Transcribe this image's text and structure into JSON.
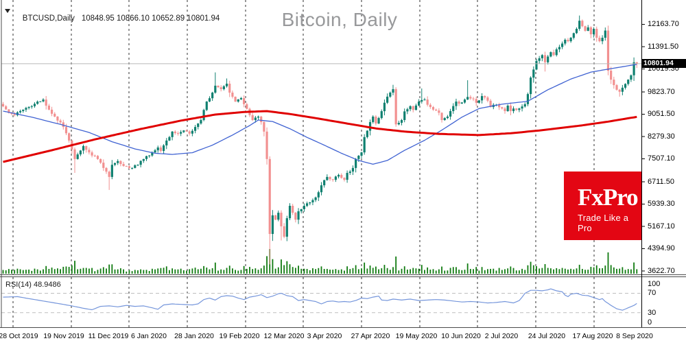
{
  "window": {
    "symbol": "BTCUSD,Daily",
    "ohlc_values": "10848.95 10866.10 10652.89 10801.94",
    "title": "Bitcoin, Daily"
  },
  "logo": {
    "brand": "FxPro",
    "tagline": "Trade Like a Pro",
    "bg_color": "#e30613"
  },
  "chart_data": {
    "type": "candlestick",
    "instrument": "BTCUSD",
    "timeframe": "Daily",
    "title": "Bitcoin, Daily",
    "current_price": "10801.94",
    "last_bar": {
      "open": 10848.95,
      "high": 10866.1,
      "low": 10652.89,
      "close": 10801.94
    },
    "bar_count": 222,
    "y_range": [
      3504,
      13008
    ],
    "y_axis_labels": [
      "12163.70",
      "11391.50",
      "10619.30",
      "9823.70",
      "9051.50",
      "8279.30",
      "7507.10",
      "6711.50",
      "5939.30",
      "5167.10",
      "4394.90",
      "3622.70"
    ],
    "x_axis_labels": [
      "28 Oct 2019",
      "19 Nov 2019",
      "11 Dec 2019",
      "6 Jan 2020",
      "28 Jan 2020",
      "19 Feb 2020",
      "12 Mar 2020",
      "3 Apr 2020",
      "27 Apr 2020",
      "19 May 2020",
      "10 Jun 2020",
      "2 Jul 2020",
      "24 Jul 2020",
      "17 Aug 2020",
      "8 Sep 2020"
    ],
    "colors": {
      "bull": "#0f8070",
      "bear": "#f29090",
      "volume": "#0f7a0f",
      "ma_fast": "#3f62d2",
      "ma_slow": "#e00000",
      "grid": "#2f2f2f",
      "border": "#4a4a4a",
      "axis": "#000000",
      "price_line": "#b8b8b8",
      "price_tag_bg": "#000000",
      "price_tag_fg": "#ffffff",
      "rsi_line": "#7495db",
      "rsi_level": "#bdbdbd",
      "title": "#98999b"
    },
    "close_path": [
      [
        0,
        9325
      ],
      [
        2,
        9100
      ],
      [
        4,
        9020
      ],
      [
        7,
        9210
      ],
      [
        10,
        9330
      ],
      [
        12,
        9490
      ],
      [
        14,
        9560
      ],
      [
        16,
        9210
      ],
      [
        18,
        8970
      ],
      [
        21,
        8610
      ],
      [
        23,
        8140
      ],
      [
        25,
        7500
      ],
      [
        26,
        7660
      ],
      [
        28,
        7950
      ],
      [
        30,
        7730
      ],
      [
        33,
        7500
      ],
      [
        35,
        7190
      ],
      [
        37,
        6880
      ],
      [
        38,
        7300
      ],
      [
        40,
        7430
      ],
      [
        42,
        7260
      ],
      [
        44,
        7190
      ],
      [
        47,
        7300
      ],
      [
        49,
        7500
      ],
      [
        52,
        7730
      ],
      [
        54,
        7900
      ],
      [
        55,
        7780
      ],
      [
        57,
        8140
      ],
      [
        59,
        8450
      ],
      [
        61,
        8380
      ],
      [
        63,
        8490
      ],
      [
        65,
        8380
      ],
      [
        67,
        8610
      ],
      [
        69,
        8850
      ],
      [
        70,
        9200
      ],
      [
        71,
        9490
      ],
      [
        73,
        9800
      ],
      [
        74,
        10040
      ],
      [
        76,
        9920
      ],
      [
        78,
        10110
      ],
      [
        79,
        9800
      ],
      [
        81,
        9490
      ],
      [
        83,
        9610
      ],
      [
        84,
        9400
      ],
      [
        86,
        9020
      ],
      [
        87,
        8850
      ],
      [
        89,
        8970
      ],
      [
        90,
        8780
      ],
      [
        91,
        8450
      ],
      [
        92,
        7500
      ],
      [
        93,
        4905
      ],
      [
        94,
        5550
      ],
      [
        95,
        5400
      ],
      [
        96,
        5640
      ],
      [
        97,
        5170
      ],
      [
        98,
        4810
      ],
      [
        99,
        5450
      ],
      [
        100,
        5880
      ],
      [
        101,
        5640
      ],
      [
        102,
        5400
      ],
      [
        103,
        5690
      ],
      [
        105,
        5880
      ],
      [
        107,
        6000
      ],
      [
        109,
        6170
      ],
      [
        110,
        6350
      ],
      [
        111,
        6590
      ],
      [
        113,
        6880
      ],
      [
        115,
        6780
      ],
      [
        117,
        6950
      ],
      [
        119,
        6780
      ],
      [
        120,
        7020
      ],
      [
        122,
        7190
      ],
      [
        123,
        7500
      ],
      [
        125,
        7730
      ],
      [
        126,
        8260
      ],
      [
        128,
        8780
      ],
      [
        129,
        8970
      ],
      [
        130,
        8730
      ],
      [
        131,
        8920
      ],
      [
        133,
        9450
      ],
      [
        135,
        9800
      ],
      [
        136,
        9920
      ],
      [
        137,
        8700
      ],
      [
        139,
        8850
      ],
      [
        140,
        9150
      ],
      [
        142,
        9330
      ],
      [
        143,
        9200
      ],
      [
        145,
        9490
      ],
      [
        147,
        9560
      ],
      [
        148,
        9380
      ],
      [
        150,
        9210
      ],
      [
        152,
        9100
      ],
      [
        153,
        8850
      ],
      [
        155,
        8970
      ],
      [
        156,
        9160
      ],
      [
        158,
        9490
      ],
      [
        159,
        9420
      ],
      [
        161,
        9560
      ],
      [
        162,
        9650
      ],
      [
        164,
        9580
      ],
      [
        165,
        9450
      ],
      [
        167,
        9680
      ],
      [
        169,
        9520
      ],
      [
        170,
        9300
      ],
      [
        172,
        9380
      ],
      [
        174,
        9250
      ],
      [
        175,
        9160
      ],
      [
        176,
        9350
      ],
      [
        177,
        9160
      ],
      [
        178,
        9250
      ],
      [
        179,
        9200
      ],
      [
        180,
        9250
      ],
      [
        181,
        9320
      ],
      [
        182,
        9400
      ],
      [
        183,
        9750
      ],
      [
        184,
        10320
      ],
      [
        185,
        10600
      ],
      [
        186,
        10900
      ],
      [
        187,
        10990
      ],
      [
        188,
        11100
      ],
      [
        189,
        10850
      ],
      [
        190,
        11050
      ],
      [
        191,
        11200
      ],
      [
        192,
        11100
      ],
      [
        193,
        11300
      ],
      [
        194,
        11380
      ],
      [
        195,
        11500
      ],
      [
        196,
        11630
      ],
      [
        197,
        11580
      ],
      [
        198,
        11700
      ],
      [
        199,
        11860
      ],
      [
        200,
        12010
      ],
      [
        201,
        12290
      ],
      [
        202,
        12100
      ],
      [
        203,
        11940
      ],
      [
        204,
        12060
      ],
      [
        205,
        11820
      ],
      [
        206,
        12010
      ],
      [
        207,
        11700
      ],
      [
        208,
        11580
      ],
      [
        209,
        11700
      ],
      [
        210,
        11950
      ],
      [
        211,
        10560
      ],
      [
        212,
        10250
      ],
      [
        213,
        10060
      ],
      [
        214,
        9900
      ],
      [
        215,
        9830
      ],
      [
        216,
        9970
      ],
      [
        217,
        10100
      ],
      [
        218,
        10250
      ],
      [
        219,
        10400
      ],
      [
        220,
        10850
      ],
      [
        221,
        10801.94
      ]
    ],
    "wick_overrides": {
      "25": {
        "low": 7020
      },
      "37": {
        "low": 6430
      },
      "74": {
        "high": 10500
      },
      "78": {
        "high": 10290
      },
      "93": {
        "low": 3850
      },
      "97": {
        "low": 4680
      },
      "136": {
        "high": 10070
      },
      "146": {
        "high": 9945
      },
      "162": {
        "high": 10230
      },
      "189": {
        "low": 10530
      },
      "201": {
        "high": 12470
      },
      "211": {
        "low": 10400
      },
      "215": {
        "low": 9660
      },
      "221": {
        "open": 10848.95,
        "high": 10866.1,
        "low": 10652.89,
        "close": 10801.94
      }
    },
    "ma_fast": {
      "name": "fast moving average",
      "points": [
        [
          0,
          9160
        ],
        [
          10,
          8950
        ],
        [
          20,
          8700
        ],
        [
          30,
          8420
        ],
        [
          38,
          8100
        ],
        [
          46,
          7850
        ],
        [
          53,
          7700
        ],
        [
          59,
          7660
        ],
        [
          66,
          7720
        ],
        [
          73,
          7980
        ],
        [
          80,
          8330
        ],
        [
          86,
          8660
        ],
        [
          89,
          8850
        ],
        [
          94,
          8800
        ],
        [
          100,
          8550
        ],
        [
          106,
          8250
        ],
        [
          112,
          7980
        ],
        [
          118,
          7700
        ],
        [
          124,
          7450
        ],
        [
          129,
          7320
        ],
        [
          134,
          7450
        ],
        [
          140,
          7800
        ],
        [
          147,
          8150
        ],
        [
          153,
          8500
        ],
        [
          160,
          8950
        ],
        [
          166,
          9250
        ],
        [
          174,
          9400
        ],
        [
          183,
          9500
        ],
        [
          190,
          9900
        ],
        [
          198,
          10270
        ],
        [
          205,
          10510
        ],
        [
          212,
          10630
        ],
        [
          221,
          10780
        ]
      ]
    },
    "ma_slow": {
      "name": "slow moving average",
      "points": [
        [
          0,
          7400
        ],
        [
          16,
          7780
        ],
        [
          32,
          8180
        ],
        [
          48,
          8540
        ],
        [
          62,
          8830
        ],
        [
          74,
          9040
        ],
        [
          84,
          9130
        ],
        [
          92,
          9160
        ],
        [
          100,
          9060
        ],
        [
          110,
          8900
        ],
        [
          120,
          8730
        ],
        [
          130,
          8560
        ],
        [
          140,
          8450
        ],
        [
          152,
          8370
        ],
        [
          166,
          8330
        ],
        [
          178,
          8400
        ],
        [
          188,
          8500
        ],
        [
          200,
          8640
        ],
        [
          210,
          8780
        ],
        [
          221,
          8960
        ]
      ]
    },
    "rsi": {
      "label": "RSI(14)",
      "value": "48.9486",
      "scale_labels": [
        "100",
        "70",
        "30",
        "0"
      ],
      "overbought": 70,
      "oversold": 30,
      "path": [
        [
          0,
          62
        ],
        [
          5,
          63
        ],
        [
          10,
          58
        ],
        [
          14,
          54
        ],
        [
          19,
          49
        ],
        [
          24,
          44
        ],
        [
          28,
          39
        ],
        [
          31,
          36
        ],
        [
          34,
          43
        ],
        [
          37,
          44
        ],
        [
          40,
          42
        ],
        [
          43,
          45
        ],
        [
          46,
          43
        ],
        [
          49,
          44
        ],
        [
          52,
          40
        ],
        [
          54,
          37
        ],
        [
          56,
          46
        ],
        [
          59,
          48
        ],
        [
          62,
          47
        ],
        [
          66,
          46
        ],
        [
          68,
          48
        ],
        [
          70,
          57
        ],
        [
          72,
          60
        ],
        [
          74,
          56
        ],
        [
          76,
          63
        ],
        [
          78,
          65
        ],
        [
          80,
          64
        ],
        [
          82,
          60
        ],
        [
          84,
          57
        ],
        [
          86,
          62
        ],
        [
          88,
          64
        ],
        [
          90,
          67
        ],
        [
          92,
          61
        ],
        [
          94,
          64
        ],
        [
          96,
          69
        ],
        [
          97,
          70
        ],
        [
          99,
          65
        ],
        [
          101,
          63
        ],
        [
          103,
          55
        ],
        [
          105,
          57
        ],
        [
          107,
          55
        ],
        [
          109,
          53
        ],
        [
          111,
          48
        ],
        [
          113,
          53
        ],
        [
          115,
          54
        ],
        [
          117,
          52
        ],
        [
          119,
          53
        ],
        [
          121,
          52
        ],
        [
          123,
          55
        ],
        [
          125,
          60
        ],
        [
          127,
          59
        ],
        [
          129,
          62
        ],
        [
          131,
          64
        ],
        [
          132,
          56
        ],
        [
          134,
          55
        ],
        [
          136,
          58
        ],
        [
          139,
          56
        ],
        [
          142,
          58
        ],
        [
          145,
          55
        ],
        [
          148,
          56
        ],
        [
          151,
          57
        ],
        [
          154,
          56
        ],
        [
          157,
          54
        ],
        [
          160,
          52
        ],
        [
          163,
          53
        ],
        [
          166,
          52
        ],
        [
          169,
          50
        ],
        [
          172,
          51
        ],
        [
          175,
          53
        ],
        [
          178,
          50
        ],
        [
          180,
          55
        ],
        [
          181,
          62
        ],
        [
          182,
          70
        ],
        [
          184,
          76
        ],
        [
          186,
          76
        ],
        [
          188,
          75
        ],
        [
          190,
          77
        ],
        [
          191,
          79
        ],
        [
          193,
          75
        ],
        [
          195,
          73
        ],
        [
          196,
          66
        ],
        [
          197,
          63
        ],
        [
          198,
          68
        ],
        [
          200,
          70
        ],
        [
          202,
          66
        ],
        [
          204,
          65
        ],
        [
          206,
          61
        ],
        [
          208,
          57
        ],
        [
          209,
          59
        ],
        [
          210,
          53
        ],
        [
          212,
          45
        ],
        [
          214,
          38
        ],
        [
          216,
          35
        ],
        [
          218,
          40
        ],
        [
          220,
          45
        ],
        [
          221,
          48.9
        ]
      ]
    }
  }
}
